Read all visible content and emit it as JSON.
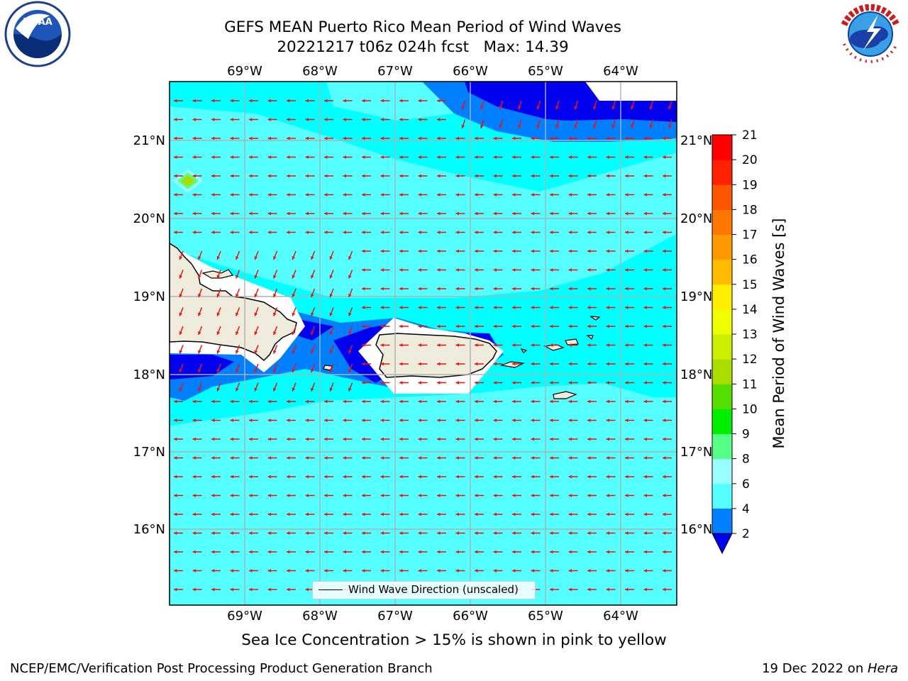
{
  "header": {
    "title_line1": "GEFS MEAN Puerto Rico Mean Period of Wind Waves",
    "title_line2": "20221217 t06z 024h fcst   Max: 14.39"
  },
  "logos": {
    "left": "noara-logo",
    "right": "national-weather-service-logo"
  },
  "map": {
    "lon_ticks": [
      "69°W",
      "68°W",
      "67°W",
      "66°W",
      "65°W",
      "64°W"
    ],
    "lat_ticks": [
      "21°N",
      "20°N",
      "19°N",
      "18°N",
      "17°N",
      "16°N"
    ],
    "land_color": "#efecdc",
    "ocean_colors": {
      "cyan_4_6": "#00ffff",
      "cyan_6_8": "#55ffff",
      "blue_2_4": "#0080ff",
      "navy_lt2": "#0000ee"
    },
    "arrow_color": "#ee1111",
    "legend": {
      "label": "Wind Wave Direction (unscaled)"
    }
  },
  "colorbar": {
    "label": "Mean Period of Wind Waves [s]",
    "ticks": [
      "2",
      "4",
      "6",
      "8",
      "9",
      "10",
      "11",
      "12",
      "13",
      "14",
      "15",
      "16",
      "17",
      "18",
      "19",
      "20",
      "21"
    ],
    "colors": [
      "#0080ff",
      "#00ffff",
      "#55ffff",
      "#99ffff",
      "#55ff88",
      "#00ee00",
      "#55dd00",
      "#aadd00",
      "#ccee00",
      "#eeff00",
      "#ffee00",
      "#ffbb00",
      "#ff9900",
      "#ff7700",
      "#ff5500",
      "#ff2200",
      "#ff0000"
    ],
    "extend_color": "#0000ee"
  },
  "footer": {
    "note": "Sea Ice Concentration > 15% is shown in pink to yellow",
    "credit_left": "NCEP/EMC/Verification Post Processing Product Generation Branch",
    "credit_right_prefix": "19 Dec 2022 on ",
    "credit_right_host": "Hera"
  }
}
